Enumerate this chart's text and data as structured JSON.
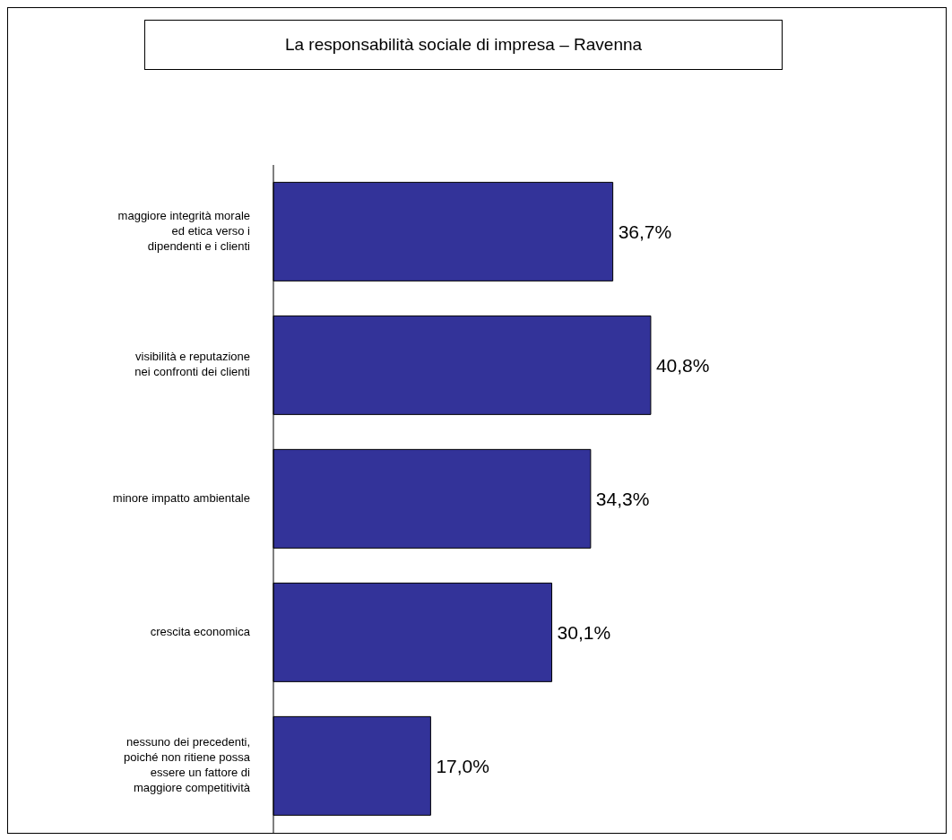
{
  "chart_data": {
    "type": "bar",
    "orientation": "horizontal",
    "title": "La responsabilità sociale di impresa – Ravenna",
    "categories": [
      "maggiore integrità morale ed etica verso i dipendenti e i clienti",
      "visibilità e reputazione nei confronti dei clienti",
      "minore impatto ambientale",
      "crescita economica",
      "nessuno dei precedenti, poiché non ritiene possa essere un fattore di maggiore competitività"
    ],
    "values": [
      36.7,
      40.8,
      34.3,
      30.1,
      17.0
    ],
    "value_labels": [
      "36,7%",
      "40,8%",
      "34,3%",
      "30,1%",
      "17,0%"
    ],
    "color": "#333399",
    "tick_labels": "y"
  }
}
